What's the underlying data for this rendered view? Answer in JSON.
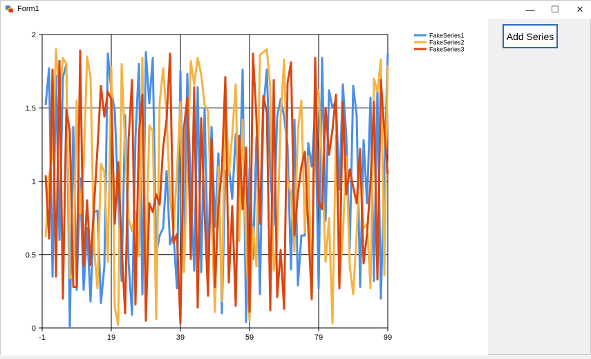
{
  "window": {
    "title": "Form1",
    "minimize_glyph": "—",
    "maximize_glyph": "☐",
    "close_glyph": "✕"
  },
  "toolbar": {
    "add_series_label": "Add Series"
  },
  "colors": {
    "FakeSeries1": "#4a8fe6",
    "FakeSeries2": "#f5b342",
    "FakeSeries3": "#d94612"
  },
  "chart_data": {
    "type": "line",
    "title": "",
    "xlabel": "",
    "ylabel": "",
    "xlim": [
      -1,
      99
    ],
    "ylim": [
      0,
      2
    ],
    "x_ticks": [
      -1,
      19,
      39,
      59,
      79,
      99
    ],
    "y_ticks": [
      0,
      0.5,
      1,
      1.5,
      2
    ],
    "y_tick_labels": [
      "0",
      "0.5",
      "1",
      "1.5",
      "2"
    ],
    "grid": true,
    "legend": "top-right",
    "x": [
      0,
      1,
      2,
      3,
      4,
      5,
      6,
      7,
      8,
      9,
      10,
      11,
      12,
      13,
      14,
      15,
      16,
      17,
      18,
      19,
      20,
      21,
      22,
      23,
      24,
      25,
      26,
      27,
      28,
      29,
      30,
      31,
      32,
      33,
      34,
      35,
      36,
      37,
      38,
      39,
      40,
      41,
      42,
      43,
      44,
      45,
      46,
      47,
      48,
      49,
      50,
      51,
      52,
      53,
      54,
      55,
      56,
      57,
      58,
      59,
      60,
      61,
      62,
      63,
      64,
      65,
      66,
      67,
      68,
      69,
      70,
      71,
      72,
      73,
      74,
      75,
      76,
      77,
      78,
      79,
      80,
      81,
      82,
      83,
      84,
      85,
      86,
      87,
      88,
      89,
      90,
      91,
      92,
      93,
      94,
      95,
      96,
      97,
      98,
      99
    ],
    "series": [
      {
        "name": "FakeSeries1",
        "color": "#4a8fe6",
        "values": [
          1.52,
          1.77,
          0.35,
          1.72,
          0.6,
          1.71,
          1.8,
          0.0,
          1.37,
          0.26,
          1.02,
          0.26,
          0.68,
          0.18,
          0.79,
          0.8,
          0.17,
          0.42,
          1.87,
          1.62,
          1.48,
          0.88,
          0.32,
          1.45,
          0.45,
          0.09,
          1.3,
          1.8,
          0.23,
          1.88,
          1.53,
          1.84,
          0.5,
          0.63,
          0.68,
          1.07,
          0.57,
          0.64,
          0.27,
          1.75,
          0.45,
          1.73,
          0.92,
          0.39,
          1.64,
          0.38,
          1.5,
          0.4,
          1.37,
          0.69,
          1.19,
          0.1,
          1.06,
          1.11,
          0.88,
          1.32,
          0.88,
          1.76,
          0.04,
          1.09,
          0.47,
          1.3,
          0.23,
          1.49,
          1.76,
          1.06,
          0.7,
          1.44,
          1.56,
          1.44,
          1.24,
          0.4,
          1.42,
          0.29,
          0.63,
          0.63,
          1.26,
          1.1,
          1.5,
          0.27,
          1.84,
          0.73,
          1.62,
          1.5,
          1.55,
          0.94,
          1.66,
          1.31,
          0.54,
          1.65,
          1.45,
          0.28,
          1.28,
          0.85,
          1.57,
          0.32,
          1.64,
          0.2,
          1.05,
          1.87
        ]
      },
      {
        "name": "FakeSeries2",
        "color": "#f5b342",
        "values": [
          0.62,
          1.03,
          1.18,
          1.9,
          1.58,
          1.84,
          1.8,
          0.34,
          0.36,
          1.55,
          0.78,
          1.1,
          1.85,
          1.71,
          0.55,
          0.27,
          1.12,
          1.06,
          0.45,
          1.78,
          0.14,
          0.02,
          1.8,
          1.23,
          0.75,
          0.66,
          0.79,
          0.49,
          1.84,
          0.37,
          1.38,
          1.34,
          0.06,
          1.54,
          1.77,
          1.45,
          0.89,
          0.66,
          1.06,
          1.54,
          0.38,
          1.07,
          1.82,
          1.66,
          1.84,
          1.73,
          1.52,
          1.48,
          0.74,
          0.11,
          1.1,
          0.18,
          1.66,
          1.04,
          1.32,
          1.66,
          0.59,
          1.42,
          0.55,
          0.05,
          0.69,
          0.42,
          1.86,
          1.88,
          1.9,
          1.64,
          0.39,
          0.58,
          1.44,
          1.83,
          1.0,
          0.92,
          0.52,
          1.35,
          1.55,
          0.65,
          1.17,
          0.19,
          1.57,
          1.62,
          1.09,
          0.45,
          0.75,
          0.03,
          1.31,
          0.3,
          0.63,
          1.17,
          0.42,
          0.23,
          0.64,
          1.17,
          0.68,
          0.71,
          0.27,
          1.7,
          1.61,
          1.83,
          0.36,
          1.79
        ]
      },
      {
        "name": "FakeSeries3",
        "color": "#d94612",
        "values": [
          1.04,
          0.61,
          1.76,
          0.35,
          1.82,
          0.2,
          1.49,
          1.34,
          0.28,
          0.28,
          1.89,
          0.42,
          0.87,
          0.43,
          0.83,
          1.22,
          1.65,
          1.44,
          1.61,
          1.56,
          0.71,
          1.13,
          0.55,
          0.1,
          1.28,
          1.69,
          0.16,
          1.33,
          1.59,
          0.05,
          0.85,
          0.79,
          0.91,
          0.84,
          1.23,
          1.42,
          1.87,
          0.58,
          0.64,
          0.03,
          1.36,
          1.57,
          0.47,
          1.64,
          0.14,
          1.43,
          0.78,
          0.22,
          1.29,
          0.28,
          0.83,
          1.08,
          1.71,
          0.31,
          0.83,
          0.15,
          1.31,
          0.81,
          1.23,
          0.11,
          1.87,
          1.43,
          0.71,
          1.58,
          1.47,
          0.12,
          1.69,
          0.21,
          0.53,
          0.13,
          1.67,
          1.81,
          0.63,
          0.92,
          1.1,
          1.2,
          0.68,
          0.2,
          1.84,
          0.86,
          0.81,
          1.5,
          1.18,
          1.35,
          1.59,
          0.27,
          1.54,
          0.91,
          1.08,
          0.96,
          0.85,
          1.22,
          0.44,
          0.64,
          0.99,
          1.54,
          0.33,
          1.69,
          1.34,
          1.05
        ]
      }
    ]
  }
}
